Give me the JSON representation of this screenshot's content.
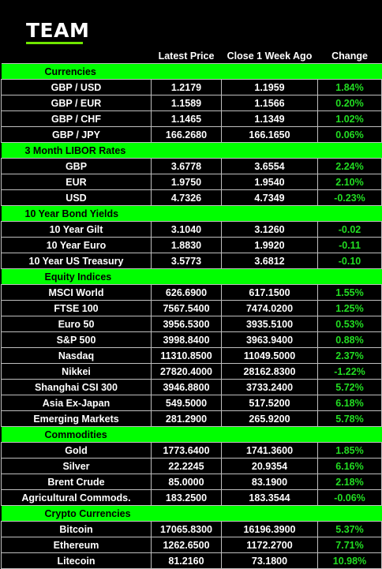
{
  "brand": {
    "name": "TEAM",
    "accent": "#6fe600"
  },
  "columns": [
    "",
    "Latest Price",
    "Close 1 Week Ago",
    "Change"
  ],
  "section_color": "#00ff00",
  "change_color": "#22dd22",
  "sections": [
    {
      "title": "Currencies",
      "rows": [
        {
          "name": "GBP / USD",
          "latest": "1.2179",
          "week_ago": "1.1959",
          "change": "1.84%"
        },
        {
          "name": "GBP / EUR",
          "latest": "1.1589",
          "week_ago": "1.1566",
          "change": "0.20%"
        },
        {
          "name": "GBP / CHF",
          "latest": "1.1465",
          "week_ago": "1.1349",
          "change": "1.02%"
        },
        {
          "name": "GBP / JPY",
          "latest": "166.2680",
          "week_ago": "166.1650",
          "change": "0.06%"
        }
      ]
    },
    {
      "title": "3 Month LIBOR Rates",
      "rows": [
        {
          "name": "GBP",
          "latest": "3.6778",
          "week_ago": "3.6554",
          "change": "2.24%"
        },
        {
          "name": "EUR",
          "latest": "1.9750",
          "week_ago": "1.9540",
          "change": "2.10%"
        },
        {
          "name": "USD",
          "latest": "4.7326",
          "week_ago": "4.7349",
          "change": "-0.23%"
        }
      ]
    },
    {
      "title": "10 Year Bond Yields",
      "rows": [
        {
          "name": "10 Year Gilt",
          "latest": "3.1040",
          "week_ago": "3.1260",
          "change": "-0.02"
        },
        {
          "name": "10 Year Euro",
          "latest": "1.8830",
          "week_ago": "1.9920",
          "change": "-0.11"
        },
        {
          "name": "10 Year US Treasury",
          "latest": "3.5773",
          "week_ago": "3.6812",
          "change": "-0.10"
        }
      ]
    },
    {
      "title": "Equity Indices",
      "rows": [
        {
          "name": "MSCI World",
          "latest": "626.6900",
          "week_ago": "617.1500",
          "change": "1.55%"
        },
        {
          "name": "FTSE 100",
          "latest": "7567.5400",
          "week_ago": "7474.0200",
          "change": "1.25%"
        },
        {
          "name": "Euro 50",
          "latest": "3956.5300",
          "week_ago": "3935.5100",
          "change": "0.53%"
        },
        {
          "name": "S&P 500",
          "latest": "3998.8400",
          "week_ago": "3963.9400",
          "change": "0.88%"
        },
        {
          "name": "Nasdaq",
          "latest": "11310.8500",
          "week_ago": "11049.5000",
          "change": "2.37%"
        },
        {
          "name": "Nikkei",
          "latest": "27820.4000",
          "week_ago": "28162.8300",
          "change": "-1.22%"
        },
        {
          "name": "Shanghai CSI 300",
          "latest": "3946.8800",
          "week_ago": "3733.2400",
          "change": "5.72%"
        },
        {
          "name": "Asia Ex-Japan",
          "latest": "549.5000",
          "week_ago": "517.5200",
          "change": "6.18%"
        },
        {
          "name": "Emerging Markets",
          "latest": "281.2900",
          "week_ago": "265.9200",
          "change": "5.78%"
        }
      ]
    },
    {
      "title": "Commodities",
      "rows": [
        {
          "name": "Gold",
          "latest": "1773.6400",
          "week_ago": "1741.3600",
          "change": "1.85%"
        },
        {
          "name": "Silver",
          "latest": "22.2245",
          "week_ago": "20.9354",
          "change": "6.16%"
        },
        {
          "name": "Brent Crude",
          "latest": "85.0000",
          "week_ago": "83.1900",
          "change": "2.18%"
        },
        {
          "name": "Agricultural Commods.",
          "latest": "183.2500",
          "week_ago": "183.3544",
          "change": "-0.06%"
        }
      ]
    },
    {
      "title": "Crypto Currencies",
      "rows": [
        {
          "name": "Bitcoin",
          "latest": "17065.8300",
          "week_ago": "16196.3900",
          "change": "5.37%"
        },
        {
          "name": "Ethereum",
          "latest": "1262.6500",
          "week_ago": "1172.2700",
          "change": "7.71%"
        },
        {
          "name": "Litecoin",
          "latest": "81.2160",
          "week_ago": "73.1800",
          "change": "10.98%"
        }
      ]
    }
  ]
}
